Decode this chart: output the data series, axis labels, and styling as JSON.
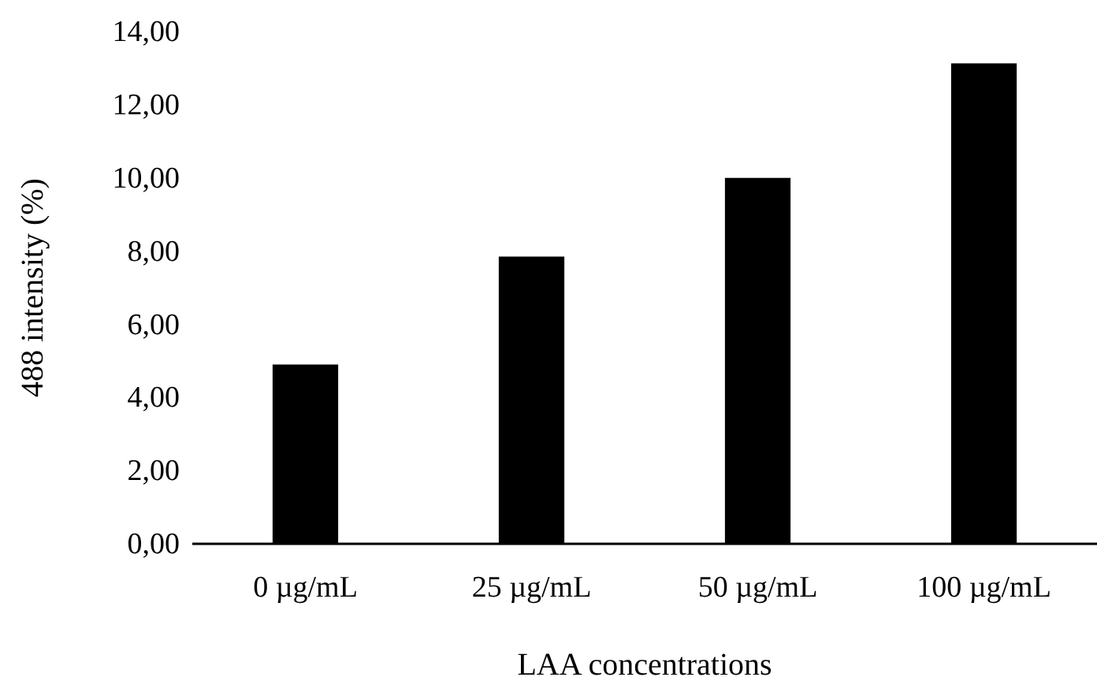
{
  "chart_data": {
    "type": "bar",
    "xlabel": "LAA concentrations",
    "ylabel": "488 intensity (%)",
    "categories": [
      "0 µg/mL",
      "25 µg/mL",
      "50 µg/mL",
      "100 µg/mL"
    ],
    "values": [
      4.9,
      7.85,
      10.0,
      13.13
    ],
    "color": "#000000",
    "ylim": [
      0,
      14
    ],
    "yticks": [
      {
        "value": 0,
        "label": "0,00"
      },
      {
        "value": 2,
        "label": "2,00"
      },
      {
        "value": 4,
        "label": "4,00"
      },
      {
        "value": 6,
        "label": "6,00"
      },
      {
        "value": 8,
        "label": "8,00"
      },
      {
        "value": 10,
        "label": "10,00"
      },
      {
        "value": 12,
        "label": "12,00"
      },
      {
        "value": 14,
        "label": "14,00"
      }
    ],
    "grid": false
  }
}
